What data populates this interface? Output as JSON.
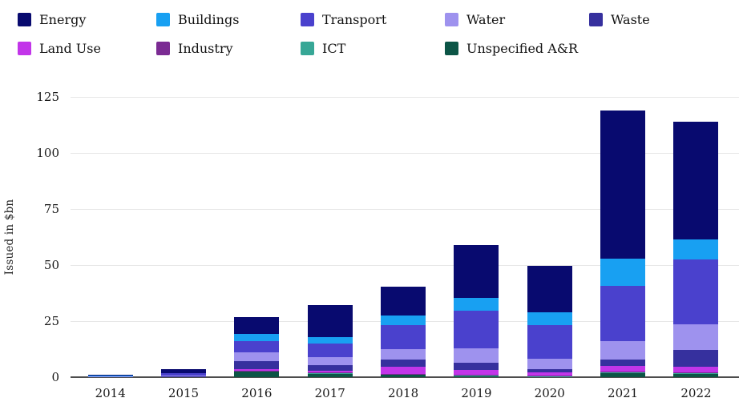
{
  "ui": {
    "ylabel": "Issued in $bn"
  },
  "chart_data": {
    "type": "bar",
    "subtype": "stacked-vertical",
    "title": "",
    "xlabel": "",
    "ylabel": "Issued in $bn",
    "ylim": [
      0,
      125
    ],
    "yticks": [
      0,
      25,
      50,
      75,
      100,
      125
    ],
    "grid": "horizontal",
    "legend_position": "top",
    "categories": [
      "2014",
      "2015",
      "2016",
      "2017",
      "2018",
      "2019",
      "2020",
      "2021",
      "2022"
    ],
    "series": [
      {
        "name": "Energy",
        "color": "#080a6f",
        "values": [
          0.4,
          1.8,
          7.5,
          14.5,
          12.9,
          23.8,
          20.8,
          66.1,
          52.3
        ]
      },
      {
        "name": "Buildings",
        "color": "#18a0f2",
        "values": [
          0.1,
          0.0,
          3.2,
          2.7,
          4.2,
          5.5,
          5.6,
          12.1,
          9.0
        ]
      },
      {
        "name": "Transport",
        "color": "#4a41cd",
        "values": [
          0.5,
          1.0,
          4.8,
          6.3,
          10.7,
          16.9,
          14.9,
          24.8,
          28.8
        ]
      },
      {
        "name": "Water",
        "color": "#9e92ee",
        "values": [
          0.2,
          0.5,
          4.2,
          3.6,
          4.5,
          6.2,
          4.8,
          8.1,
          11.7
        ]
      },
      {
        "name": "Waste",
        "color": "#36309e",
        "values": [
          0.0,
          0.2,
          3.3,
          2.3,
          3.4,
          3.4,
          1.4,
          2.9,
          7.4
        ]
      },
      {
        "name": "Land Use",
        "color": "#c235e9",
        "values": [
          0.0,
          0.0,
          0.7,
          0.8,
          3.2,
          2.1,
          1.5,
          2.5,
          2.6
        ]
      },
      {
        "name": "Industry",
        "color": "#7b2b93",
        "values": [
          0.0,
          0.0,
          0.1,
          0.4,
          0.1,
          0.4,
          0.2,
          0.5,
          0.3
        ]
      },
      {
        "name": "ICT",
        "color": "#37a796",
        "values": [
          0.0,
          0.0,
          0.1,
          0.1,
          0.1,
          0.1,
          0.1,
          0.2,
          0.2
        ]
      },
      {
        "name": "Unspecified A&R",
        "color": "#0c5546",
        "values": [
          0.0,
          0.0,
          2.8,
          1.6,
          1.2,
          0.6,
          0.3,
          1.8,
          1.5
        ]
      }
    ],
    "stack_order": "first series renders on top of stack",
    "totals": [
      1.2,
      3.5,
      26.7,
      32.3,
      40.3,
      59.0,
      49.6,
      119.0,
      113.8
    ]
  }
}
